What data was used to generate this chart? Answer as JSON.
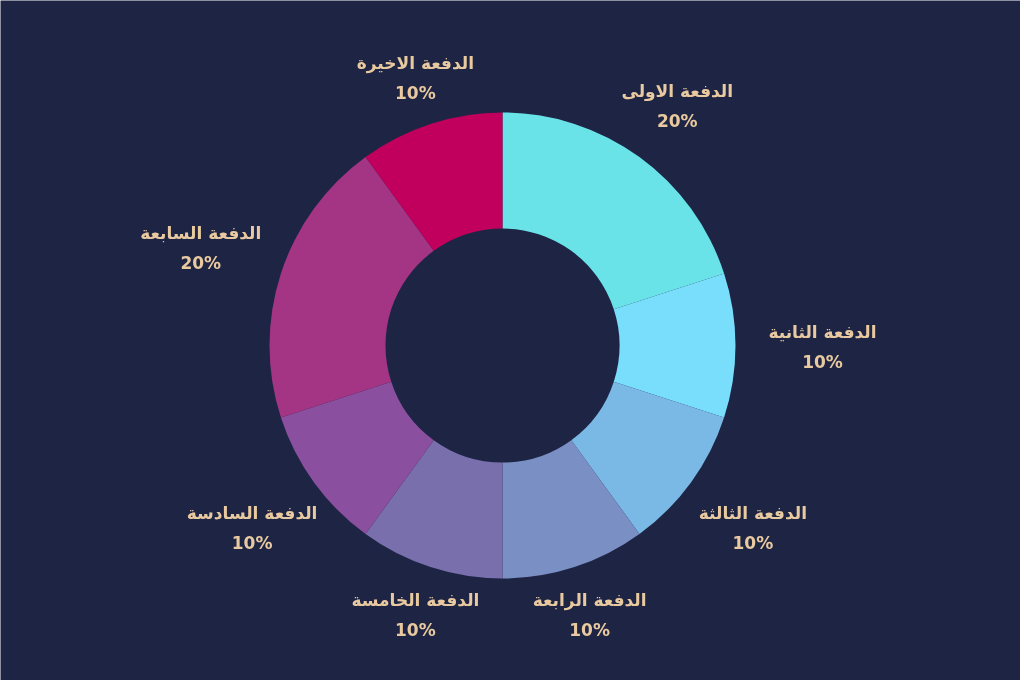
{
  "chart_data": {
    "type": "donut",
    "categories": [
      "الدفعة الاولى",
      "الدفعة الثانية",
      "الدفعة الثالثة",
      "الدفعة الرابعة",
      "الدفعة الخامسة",
      "الدفعة السادسة",
      "الدفعة السابعة",
      "الدفعة الاخيرة"
    ],
    "values": [
      20,
      10,
      10,
      10,
      10,
      10,
      20,
      10
    ],
    "value_labels": [
      "20%",
      "10%",
      "10%",
      "10%",
      "10%",
      "10%",
      "20%",
      "10%"
    ],
    "colors": [
      "#69e3e8",
      "#79ddfc",
      "#7ab8e6",
      "#7a8fc4",
      "#7a6fad",
      "#8a4f9e",
      "#a33584",
      "#c0005c"
    ]
  }
}
